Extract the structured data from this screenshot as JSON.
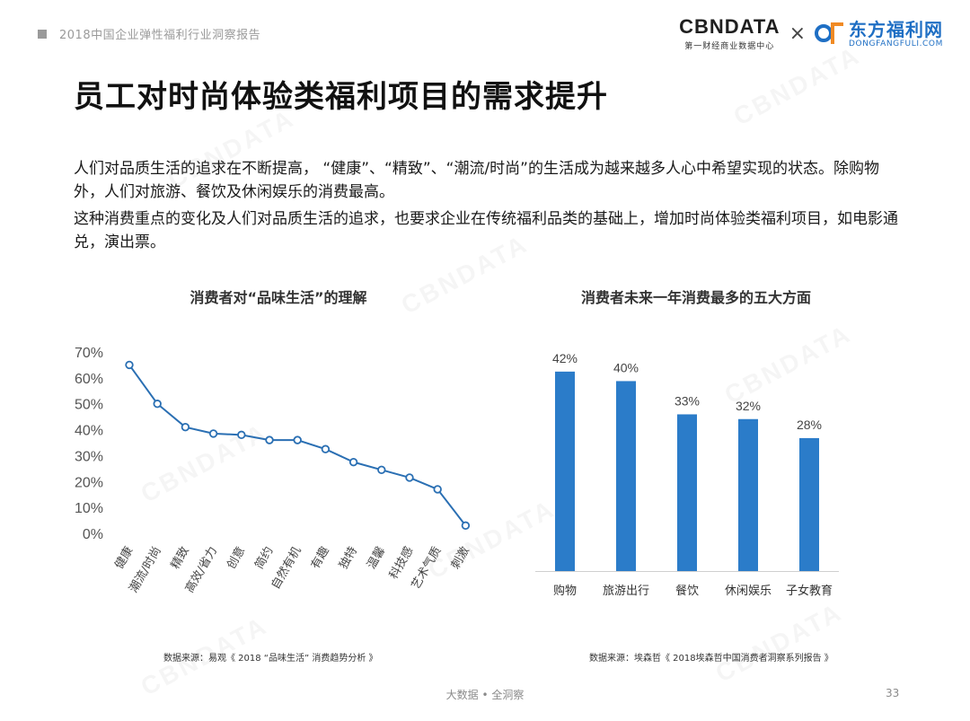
{
  "header": {
    "report_title": "2018中国企业弹性福利行业洞察报告",
    "logo_cbn": "CBNDATA",
    "logo_cbn_sub": "第一财经商业数据中心",
    "logo_times": "×",
    "logo_df_cn": "东方福利网",
    "logo_df_en": "DONGFANGFULI.COM"
  },
  "main": {
    "title": "员工对时尚体验类福利项目的需求提升",
    "paragraph1": "人们对品质生活的追求在不断提高， “健康”、“精致”、“潮流/时尚”的生活成为越来越多人心中希望实现的状态。除购物外，人们对旅游、餐饮及休闲娱乐的消费最高。",
    "paragraph2": "这种消费重点的变化及人们对品质生活的追求，也要求企业在传统福利品类的基础上，增加时尚体验类福利项目，如电影通兑，演出票。"
  },
  "watermark": "CBNDATA",
  "chart_data": [
    {
      "type": "line",
      "title": "消费者对“品味生活”的理解",
      "categories": [
        "健康",
        "潮流/时尚",
        "精致",
        "高效/省力",
        "创意",
        "简约",
        "自然有机",
        "有趣",
        "独特",
        "温馨",
        "科技感",
        "艺术气质",
        "刺激"
      ],
      "values": [
        65,
        50,
        41,
        38.5,
        38,
        36,
        36,
        32.5,
        27.5,
        24.5,
        21.5,
        17,
        3
      ],
      "ylim": [
        0,
        70
      ],
      "yticks": [
        "0%",
        "10%",
        "20%",
        "30%",
        "40%",
        "50%",
        "60%",
        "70%"
      ],
      "color": "#2a6fb3",
      "source": "数据来源：易观《 2018 “品味生活” 消费趋势分析 》"
    },
    {
      "type": "bar",
      "title": "消费者未来一年消费最多的五大方面",
      "categories": [
        "购物",
        "旅游出行",
        "餐饮",
        "休闲娱乐",
        "子女教育"
      ],
      "values": [
        42,
        40,
        33,
        32,
        28
      ],
      "labels": [
        "42%",
        "40%",
        "33%",
        "32%",
        "28%"
      ],
      "ylim": [
        0,
        45
      ],
      "color": "#2b7cc9",
      "source": "数据来源：埃森哲《 2018埃森哲中国消费者洞察系列报告 》"
    }
  ],
  "footer": {
    "center": "大数据 • 全洞察",
    "page": "33"
  }
}
